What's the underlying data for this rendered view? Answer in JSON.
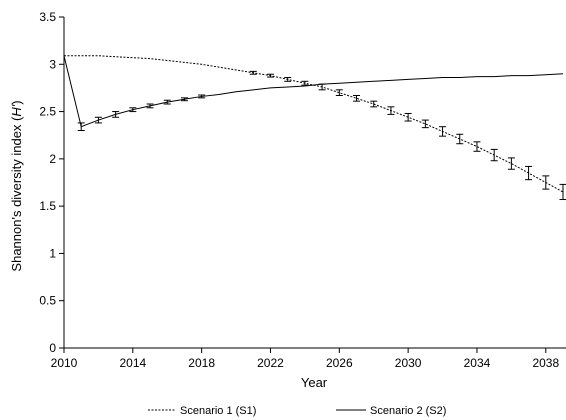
{
  "chart_data": {
    "type": "line",
    "title": "",
    "xlabel": "Year",
    "ylabel_prefix": "Shannon's diversity index (",
    "ylabel_var": "H'",
    "ylabel_suffix": ")",
    "xlim": [
      2010,
      2039
    ],
    "ylim": [
      0,
      3.5
    ],
    "x_ticks": [
      2010,
      2014,
      2018,
      2022,
      2026,
      2030,
      2034,
      2038
    ],
    "y_ticks": [
      "0",
      "0.5",
      "1",
      "1.5",
      "2",
      "2.5",
      "3",
      "3.5"
    ],
    "legend_position": "bottom",
    "grid": false,
    "series": [
      {
        "name": "Scenario 1 (S1)",
        "style": "dashed",
        "x": [
          2010,
          2011,
          2012,
          2013,
          2014,
          2015,
          2016,
          2017,
          2018,
          2019,
          2020,
          2021,
          2022,
          2023,
          2024,
          2025,
          2026,
          2027,
          2028,
          2029,
          2030,
          2031,
          2032,
          2033,
          2034,
          2035,
          2036,
          2037,
          2038,
          2039
        ],
        "y": [
          3.09,
          3.09,
          3.09,
          3.08,
          3.07,
          3.06,
          3.04,
          3.02,
          3.0,
          2.97,
          2.94,
          2.91,
          2.88,
          2.84,
          2.8,
          2.76,
          2.7,
          2.64,
          2.58,
          2.51,
          2.44,
          2.37,
          2.29,
          2.21,
          2.13,
          2.04,
          1.95,
          1.85,
          1.75,
          1.65
        ],
        "err": [
          0.01,
          0.01,
          0.01,
          0.01,
          0.01,
          0.01,
          0.01,
          0.01,
          0.01,
          0.01,
          0.01,
          0.015,
          0.015,
          0.02,
          0.02,
          0.03,
          0.03,
          0.03,
          0.03,
          0.04,
          0.04,
          0.04,
          0.05,
          0.05,
          0.05,
          0.06,
          0.06,
          0.07,
          0.07,
          0.08
        ]
      },
      {
        "name": "Scenario 2 (S2)",
        "style": "solid",
        "x": [
          2010,
          2011,
          2012,
          2013,
          2014,
          2015,
          2016,
          2017,
          2018,
          2019,
          2020,
          2021,
          2022,
          2023,
          2024,
          2025,
          2026,
          2027,
          2028,
          2029,
          2030,
          2031,
          2032,
          2033,
          2034,
          2035,
          2036,
          2037,
          2038,
          2039
        ],
        "y": [
          3.09,
          2.34,
          2.41,
          2.47,
          2.52,
          2.56,
          2.6,
          2.63,
          2.66,
          2.68,
          2.71,
          2.73,
          2.75,
          2.76,
          2.77,
          2.79,
          2.8,
          2.81,
          2.82,
          2.83,
          2.84,
          2.85,
          2.86,
          2.86,
          2.87,
          2.87,
          2.88,
          2.88,
          2.89,
          2.9
        ],
        "err": [
          0.01,
          0.04,
          0.03,
          0.03,
          0.02,
          0.02,
          0.02,
          0.015,
          0.015,
          0.01,
          0.01,
          0.01,
          0.01,
          0.01,
          0.01,
          0.01,
          0.01,
          0.01,
          0.01,
          0.01,
          0.01,
          0.01,
          0.01,
          0.01,
          0.01,
          0.01,
          0.01,
          0.01,
          0.01,
          0.01
        ]
      }
    ]
  }
}
